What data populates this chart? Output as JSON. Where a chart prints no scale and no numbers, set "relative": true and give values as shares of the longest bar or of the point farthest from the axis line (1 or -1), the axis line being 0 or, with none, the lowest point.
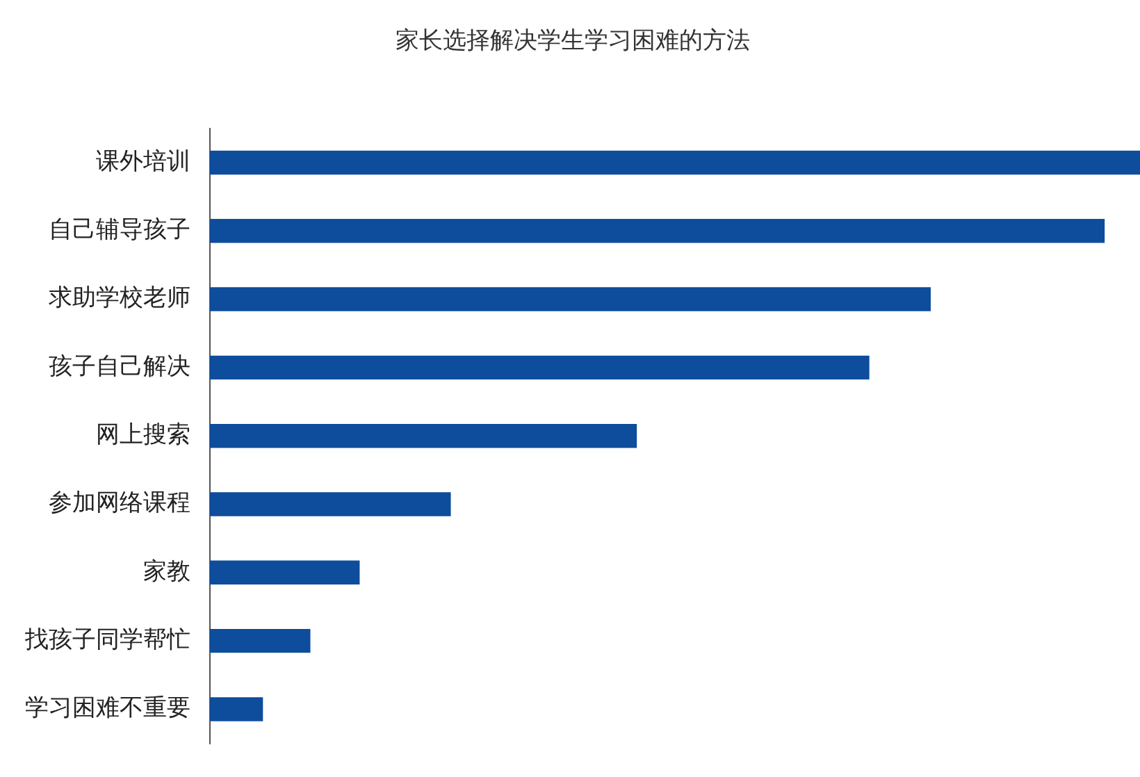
{
  "chart_data": {
    "type": "bar",
    "orientation": "horizontal",
    "relative": true,
    "title": "家长选择解决学生学习困难的方法",
    "categories": [
      "课外培训",
      "自己辅导孩子",
      "求助学校老师",
      "孩子自己解决",
      "网上搜索",
      "参加网络课程",
      "家教",
      "找孩子同学帮忙",
      "学习困难不重要"
    ],
    "values": [
      1,
      0.962,
      0.775,
      0.709,
      0.459,
      0.259,
      0.161,
      0.108,
      0.057
    ],
    "color": "#0e4c9c",
    "grid": false,
    "legend": false
  }
}
